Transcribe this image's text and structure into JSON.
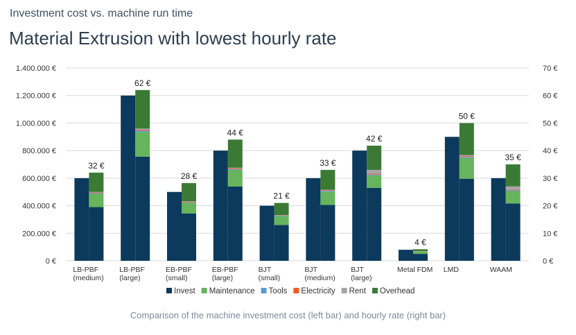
{
  "header": {
    "subtitle": "Investment cost vs. machine run time",
    "title": "Material Extrusion with lowest hourly rate"
  },
  "caption": "Comparison of the machine investment cost (left bar) and hourly rate (right bar)",
  "colors": {
    "invest": "#0c3a5c",
    "maintenance": "#66b45c",
    "tools": "#5b9bd5",
    "electricity": "#f05a28",
    "rent": "#a6a6a6",
    "overhead": "#3b7a35",
    "grid": "#d9d9d9",
    "axis_text": "#333333"
  },
  "chart_data": {
    "type": "bar",
    "subtype": "paired-bars (invest + stacked hourly rate)",
    "categories": [
      [
        "LB-PBF",
        "(medium)"
      ],
      [
        "LB-PBF",
        "(large)"
      ],
      [
        "EB-PBF",
        "(small)"
      ],
      [
        "EB-PBF",
        "(large)"
      ],
      [
        "BJT",
        "(small)"
      ],
      [
        "BJT",
        "(medium)"
      ],
      [
        "BJT",
        "(large)"
      ],
      [
        "Metal FDM"
      ],
      [
        "LMD"
      ],
      [
        "WAAM"
      ]
    ],
    "left_axis": {
      "ylim": [
        0,
        1400000
      ],
      "ticks": [
        "0 €",
        "200.000 €",
        "400.000 €",
        "600.000 €",
        "800.000 €",
        "1.000.000 €",
        "1.200.000 €",
        "1.400.000 €"
      ]
    },
    "right_axis": {
      "ylim": [
        0,
        70
      ],
      "ticks": [
        "0 €",
        "10 €",
        "20 €",
        "30 €",
        "40 €",
        "50 €",
        "60 €",
        "70 €"
      ]
    },
    "invest": [
      600000,
      1200000,
      500000,
      800000,
      400000,
      600000,
      800000,
      80000,
      900000,
      600000
    ],
    "hourly_rate_components": [
      {
        "name": "Invest",
        "axis": "right",
        "values": [
          19.5,
          37.8,
          17.2,
          27.0,
          13.0,
          20.3,
          26.5,
          2.5,
          29.8,
          20.8
        ]
      },
      {
        "name": "Maintenance",
        "axis": "right",
        "values": [
          4.8,
          9.0,
          3.8,
          6.0,
          3.2,
          4.8,
          4.5,
          0.8,
          7.5,
          4.5
        ]
      },
      {
        "name": "Tools",
        "axis": "right",
        "values": [
          0.3,
          0.5,
          0.2,
          0.3,
          0.2,
          0.3,
          0.3,
          0.0,
          0.4,
          0.3
        ]
      },
      {
        "name": "Electricity",
        "axis": "right",
        "values": [
          0.2,
          0.3,
          0.2,
          0.3,
          0.1,
          0.2,
          0.3,
          0.0,
          0.3,
          0.2
        ]
      },
      {
        "name": "Rent",
        "axis": "right",
        "values": [
          0.2,
          0.4,
          0.2,
          0.2,
          0.1,
          0.2,
          1.4,
          0.2,
          0.4,
          1.2
        ]
      },
      {
        "name": "Overhead",
        "axis": "right",
        "values": [
          7.0,
          14.0,
          6.6,
          10.2,
          4.4,
          7.2,
          8.8,
          0.7,
          11.6,
          8.0
        ]
      }
    ],
    "totals_labels": [
      "32 €",
      "62 €",
      "28 €",
      "44 €",
      "21 €",
      "33 €",
      "42 €",
      "4 €",
      "50 €",
      "35 €"
    ],
    "legend": [
      "Invest",
      "Maintenance",
      "Tools",
      "Electricity",
      "Rent",
      "Overhead"
    ],
    "legend_placement": "bottom",
    "grid": true
  }
}
